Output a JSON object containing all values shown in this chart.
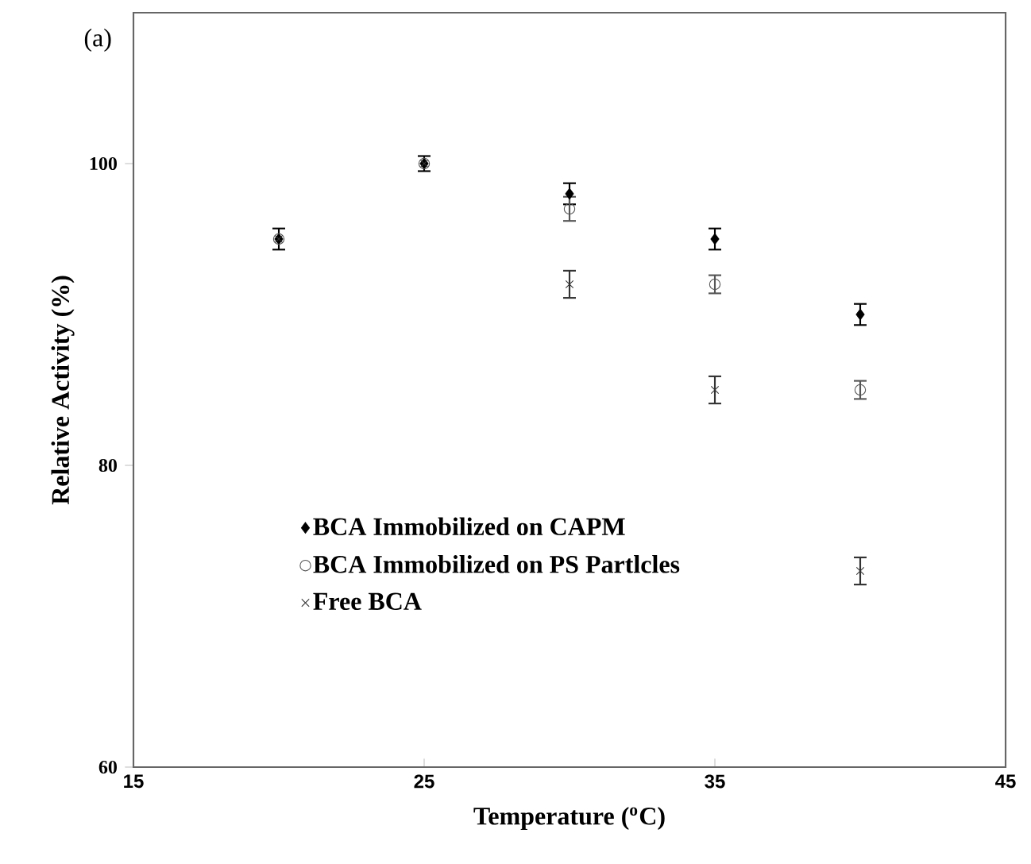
{
  "chart_data": {
    "type": "scatter",
    "xlabel": "Temperature ($^{o}$C)",
    "ylabel": "Relative Activity (%)",
    "annotations": [
      "(a)"
    ],
    "xlim": [
      15,
      45
    ],
    "xticks": [
      15,
      25,
      35,
      45
    ],
    "ylim": [
      60,
      110
    ],
    "yticks": [
      60,
      80,
      100
    ],
    "grid": false,
    "legend": "bottom left",
    "series": [
      {
        "name": "BCA Immobilized on CAPM",
        "color": "#000000",
        "marker": "diamond",
        "x": [
          20,
          25,
          30,
          35,
          40
        ],
        "values": [
          95,
          100,
          98,
          95,
          90
        ],
        "errors": [
          0.7,
          0.5,
          0.7,
          0.7,
          0.7
        ]
      },
      {
        "name": "BCA Immobilized on PS Partlcles",
        "color": "#555555",
        "marker": "circle",
        "x": [
          20,
          25,
          30,
          35,
          40
        ],
        "values": [
          95,
          100,
          97,
          92,
          85
        ],
        "errors": [
          null,
          null,
          0.8,
          0.6,
          0.6
        ]
      },
      {
        "name": "Free BCA",
        "color": "#333333",
        "marker": "cross",
        "x": [
          20,
          25,
          30,
          35,
          40
        ],
        "values": [
          95,
          100,
          92,
          85,
          73
        ],
        "errors": [
          null,
          null,
          0.9,
          0.9,
          0.9
        ]
      }
    ]
  }
}
